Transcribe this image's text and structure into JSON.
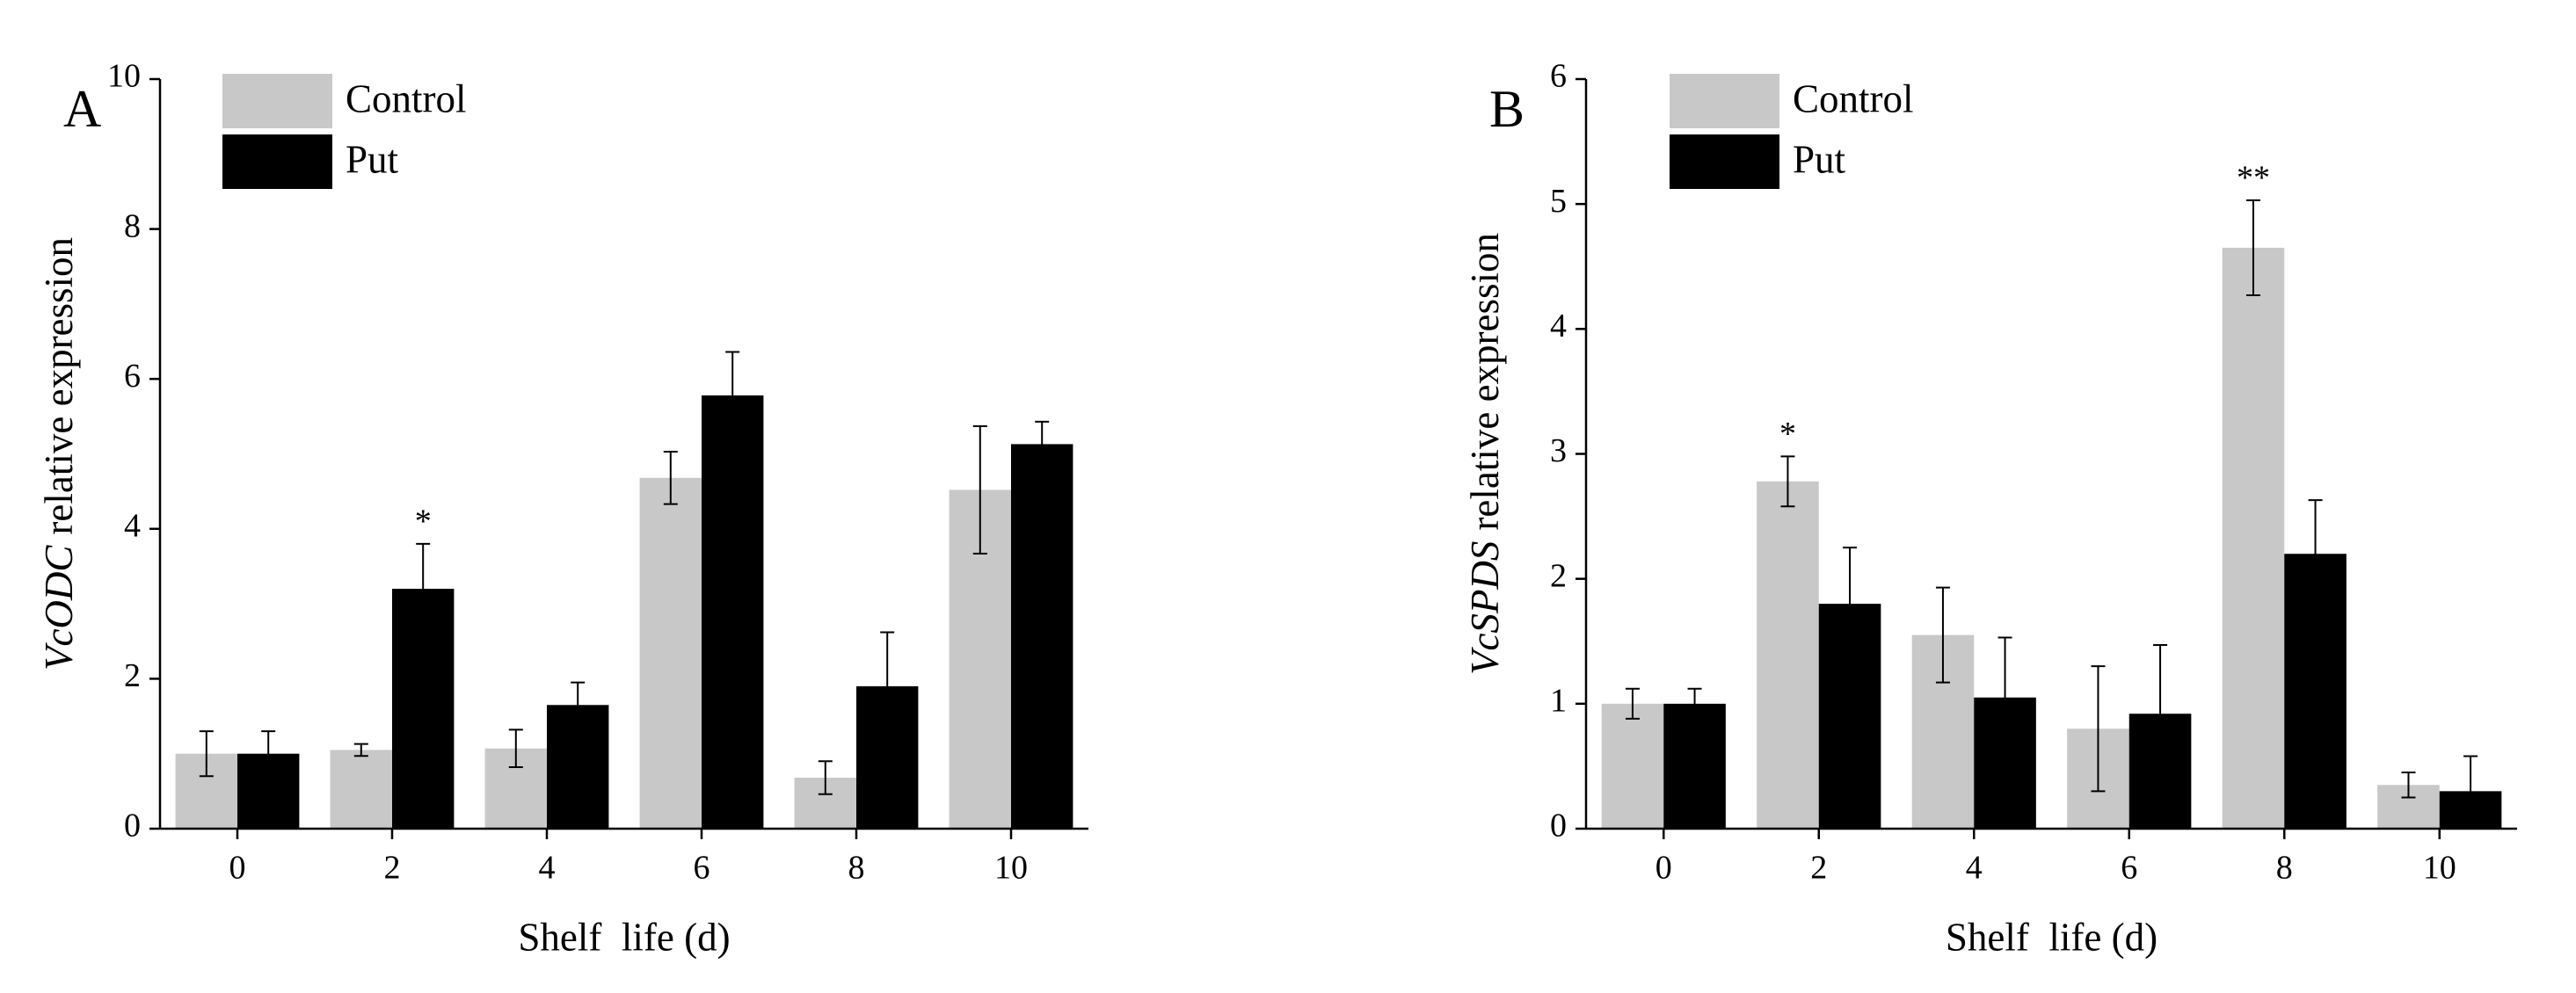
{
  "chart_data": [
    {
      "type": "bar",
      "panel": "A",
      "ylabel_gene": "VcODC",
      "ylabel_rest": "relative expression",
      "xlabel": "Shelf  life (d)",
      "categories": [
        "0",
        "2",
        "4",
        "6",
        "8",
        "10"
      ],
      "series": [
        {
          "name": "Control",
          "color": "#c8c8c8",
          "values": [
            1.0,
            1.05,
            1.07,
            4.68,
            0.68,
            4.52
          ],
          "errors": [
            0.3,
            0.08,
            0.25,
            0.35,
            0.22,
            0.85
          ]
        },
        {
          "name": "Put",
          "color": "#000000",
          "values": [
            1.0,
            3.2,
            1.65,
            5.78,
            1.9,
            5.13
          ],
          "errors": [
            0.3,
            0.6,
            0.3,
            0.58,
            0.72,
            0.3
          ]
        }
      ],
      "annotations": [
        {
          "series": 1,
          "index": 1,
          "text": "*"
        }
      ],
      "ylim": [
        0,
        10
      ],
      "yticks": [
        0,
        2,
        4,
        6,
        8,
        10
      ]
    },
    {
      "type": "bar",
      "panel": "B",
      "ylabel_gene": "VcSPDS",
      "ylabel_rest": "relative expression",
      "xlabel": "Shelf  life (d)",
      "categories": [
        "0",
        "2",
        "4",
        "6",
        "8",
        "10"
      ],
      "series": [
        {
          "name": "Control",
          "color": "#c8c8c8",
          "values": [
            1.0,
            2.78,
            1.55,
            0.8,
            4.65,
            0.35
          ],
          "errors": [
            0.12,
            0.2,
            0.38,
            0.5,
            0.38,
            0.1
          ]
        },
        {
          "name": "Put",
          "color": "#000000",
          "values": [
            1.0,
            1.8,
            1.05,
            0.92,
            2.2,
            0.3
          ],
          "errors": [
            0.12,
            0.45,
            0.48,
            0.55,
            0.43,
            0.28
          ]
        }
      ],
      "annotations": [
        {
          "series": 0,
          "index": 1,
          "text": "*"
        },
        {
          "series": 0,
          "index": 4,
          "text": "**"
        }
      ],
      "ylim": [
        0,
        6
      ],
      "yticks": [
        0,
        1,
        2,
        3,
        4,
        5,
        6
      ]
    }
  ]
}
